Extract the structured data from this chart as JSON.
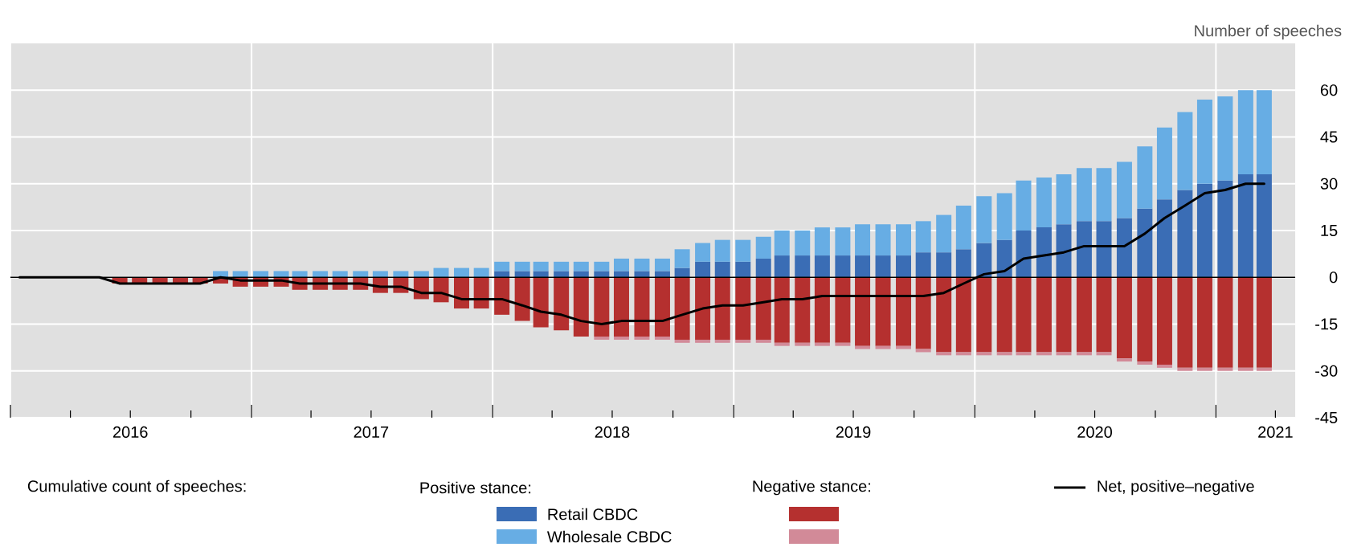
{
  "chart_data": {
    "type": "bar",
    "stacked": true,
    "ylabel": "Number of speeches",
    "legend_title": "Cumulative count of speeches:",
    "annotations": [
      "Positive stance:",
      "Negative stance:"
    ],
    "x": [
      "2016-01-15",
      "2016-02-15",
      "2016-03-15",
      "2016-04-15",
      "2016-05-15",
      "2016-06-15",
      "2016-07-15",
      "2016-08-15",
      "2016-09-15",
      "2016-10-15",
      "2016-11-15",
      "2016-12-15",
      "2017-01-15",
      "2017-02-15",
      "2017-03-15",
      "2017-04-15",
      "2017-05-15",
      "2017-06-15",
      "2017-07-15",
      "2017-08-15",
      "2017-09-15",
      "2017-10-15",
      "2017-11-15",
      "2017-12-15",
      "2018-01-15",
      "2018-02-15",
      "2018-03-15",
      "2018-04-15",
      "2018-05-15",
      "2018-06-15",
      "2018-07-15",
      "2018-08-15",
      "2018-09-15",
      "2018-10-15",
      "2018-11-15",
      "2018-12-15",
      "2019-01-15",
      "2019-02-15",
      "2019-03-15",
      "2019-04-15",
      "2019-05-15",
      "2019-06-15",
      "2019-07-15",
      "2019-08-15",
      "2019-09-15",
      "2019-10-15",
      "2019-11-15",
      "2019-12-15",
      "2020-01-15",
      "2020-02-15",
      "2020-03-15",
      "2020-04-15",
      "2020-05-15",
      "2020-06-15",
      "2020-07-15",
      "2020-08-15",
      "2020-09-15",
      "2020-10-15",
      "2020-11-15",
      "2020-12-15",
      "2021-01-15",
      "2021-02-15",
      "2021-03-15"
    ],
    "series": [
      {
        "name": "Retail CBDC",
        "color": "#3a6db5",
        "values": [
          null,
          null,
          null,
          null,
          null,
          null,
          null,
          null,
          null,
          null,
          null,
          null,
          null,
          null,
          null,
          null,
          null,
          null,
          null,
          null,
          null,
          null,
          null,
          null,
          2,
          2,
          2,
          2,
          2,
          2,
          2,
          2,
          2,
          3,
          5,
          5,
          5,
          6,
          7,
          7,
          7,
          7,
          7,
          7,
          7,
          8,
          8,
          9,
          11,
          12,
          15,
          16,
          17,
          18,
          18,
          19,
          22,
          25,
          28,
          30,
          31,
          33,
          33
        ]
      },
      {
        "name": "Wholesale CBDC",
        "color": "#67ade4",
        "values": [
          null,
          null,
          null,
          null,
          null,
          null,
          null,
          null,
          null,
          null,
          2,
          2,
          2,
          2,
          2,
          2,
          2,
          2,
          2,
          2,
          2,
          3,
          3,
          3,
          3,
          3,
          3,
          3,
          3,
          3,
          4,
          4,
          4,
          6,
          6,
          7,
          7,
          7,
          8,
          8,
          9,
          9,
          10,
          10,
          10,
          10,
          12,
          14,
          15,
          15,
          16,
          16,
          16,
          17,
          17,
          18,
          20,
          23,
          25,
          27,
          27,
          27,
          27
        ]
      },
      {
        "color": "#b5302f",
        "values": [
          null,
          null,
          null,
          null,
          null,
          -2,
          -2,
          -2,
          -2,
          -2,
          -2,
          -3,
          -3,
          -3,
          -4,
          -4,
          -4,
          -4,
          -5,
          -5,
          -7,
          -8,
          -10,
          -10,
          -12,
          -14,
          -16,
          -17,
          -19,
          -19,
          -19,
          -19,
          -19,
          -20,
          -20,
          -20,
          -20,
          -20,
          -21,
          -21,
          -21,
          -21,
          -22,
          -22,
          -22,
          -23,
          -24,
          -24,
          -24,
          -24,
          -24,
          -24,
          -24,
          -24,
          -24,
          -26,
          -27,
          -28,
          -29,
          -29,
          -29,
          -29,
          -29
        ]
      },
      {
        "color": "#d28a98",
        "values": [
          null,
          null,
          null,
          null,
          null,
          null,
          null,
          null,
          null,
          null,
          null,
          null,
          null,
          null,
          null,
          null,
          null,
          null,
          null,
          null,
          null,
          null,
          null,
          null,
          null,
          null,
          null,
          null,
          null,
          -1,
          -1,
          -1,
          -1,
          -1,
          -1,
          -1,
          -1,
          -1,
          -1,
          -1,
          -1,
          -1,
          -1,
          -1,
          -1,
          -1,
          -1,
          -1,
          -1,
          -1,
          -1,
          -1,
          -1,
          -1,
          -1,
          -1,
          -1,
          -1,
          -1,
          -1,
          -1,
          -1,
          -1
        ]
      },
      {
        "name": "Net, positive–negative",
        "type": "line",
        "color": "#000000",
        "values": [
          0,
          0,
          0,
          0,
          0,
          -2,
          -2,
          -2,
          -2,
          -2,
          0,
          -1,
          -1,
          -1,
          -2,
          -2,
          -2,
          -2,
          -3,
          -3,
          -5,
          -5,
          -7,
          -7,
          -7,
          -9,
          -11,
          -12,
          -14,
          -15,
          -14,
          -14,
          -14,
          -12,
          -10,
          -9,
          -9,
          -8,
          -7,
          -7,
          -6,
          -6,
          -6,
          -6,
          -6,
          -6,
          -5,
          -2,
          1,
          2,
          6,
          7,
          8,
          10,
          10,
          10,
          14,
          19,
          23,
          27,
          28,
          30,
          30
        ]
      }
    ],
    "xlim": [
      "2016-01",
      "2021-05"
    ],
    "xticks": [
      {
        "value": "2016-01",
        "label": null
      },
      {
        "value": "2016-04",
        "label": null
      },
      {
        "value": "2016-07",
        "label": null
      },
      {
        "value": "2016-10",
        "label": null
      },
      {
        "value": "2017-01",
        "label": null
      },
      {
        "value": "2017-04",
        "label": null
      },
      {
        "value": "2017-07",
        "label": null
      },
      {
        "value": "2017-10",
        "label": null
      },
      {
        "value": "2018-01",
        "label": null
      },
      {
        "value": "2018-04",
        "label": null
      },
      {
        "value": "2018-07",
        "label": null
      },
      {
        "value": "2018-10",
        "label": null
      },
      {
        "value": "2019-01",
        "label": null
      },
      {
        "value": "2019-04",
        "label": null
      },
      {
        "value": "2019-07",
        "label": null
      },
      {
        "value": "2019-10",
        "label": null
      },
      {
        "value": "2020-01",
        "label": null
      },
      {
        "value": "2020-04",
        "label": null
      },
      {
        "value": "2020-07",
        "label": null
      },
      {
        "value": "2020-10",
        "label": null
      },
      {
        "value": "2021-01",
        "label": null
      },
      {
        "value": "2021-04",
        "label": null
      },
      {
        "value": "2016-07",
        "label": "2016"
      },
      {
        "value": "2017-07",
        "label": "2017"
      },
      {
        "value": "2018-07",
        "label": "2018"
      },
      {
        "value": "2019-07",
        "label": "2019"
      },
      {
        "value": "2020-07",
        "label": "2020"
      },
      {
        "value": "2021-04",
        "label": "2021"
      }
    ],
    "ylim": [
      -45,
      75
    ],
    "yticks": [
      -45,
      -30,
      -15,
      0,
      15,
      30,
      45,
      60
    ],
    "ref_lines": [
      {
        "axis": "y",
        "value": 0,
        "color": "#000000"
      }
    ],
    "grid": true,
    "legend": "bottom"
  }
}
